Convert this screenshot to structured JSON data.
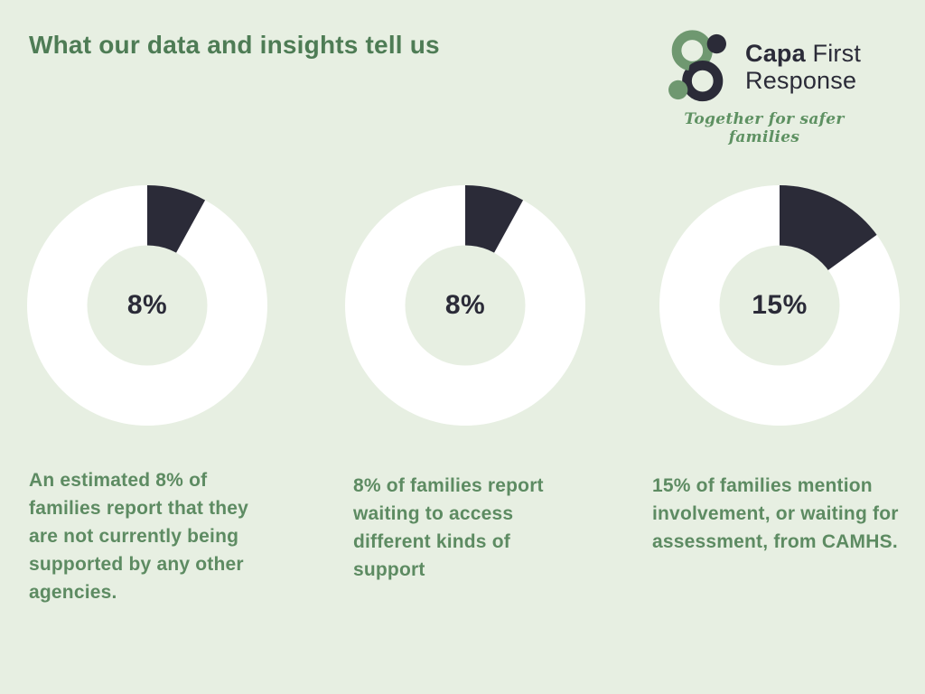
{
  "header": {
    "title": "What our data and insights tell us"
  },
  "logo": {
    "brand_bold": "Capa",
    "brand_rest": "First",
    "brand_line2": "Response",
    "tagline": "Together for safer families"
  },
  "colors": {
    "background": "#e7efe2",
    "title_green": "#4e7c55",
    "body_green": "#5d8b62",
    "dark_navy": "#2b2b38",
    "logo_green": "#6f9870",
    "tagline_green": "#5e9162",
    "white": "#ffffff"
  },
  "chart_data": {
    "type": "pie",
    "variant": "donut",
    "start_angle_deg": 0,
    "direction": "clockwise",
    "ring_color": "#ffffff",
    "segment_color": "#2b2b38",
    "hole_color": "#e7efe2",
    "hole_ratio": 0.5,
    "charts": [
      {
        "label": "8%",
        "value": 8,
        "caption": "An estimated 8% of families report that they are not currently being supported by any other agencies."
      },
      {
        "label": "8%",
        "value": 8,
        "caption": "8% of families report waiting to access different kinds of support"
      },
      {
        "label": "15%",
        "value": 15,
        "caption": "15% of families mention involvement, or waiting for assessment, from CAMHS."
      }
    ]
  }
}
